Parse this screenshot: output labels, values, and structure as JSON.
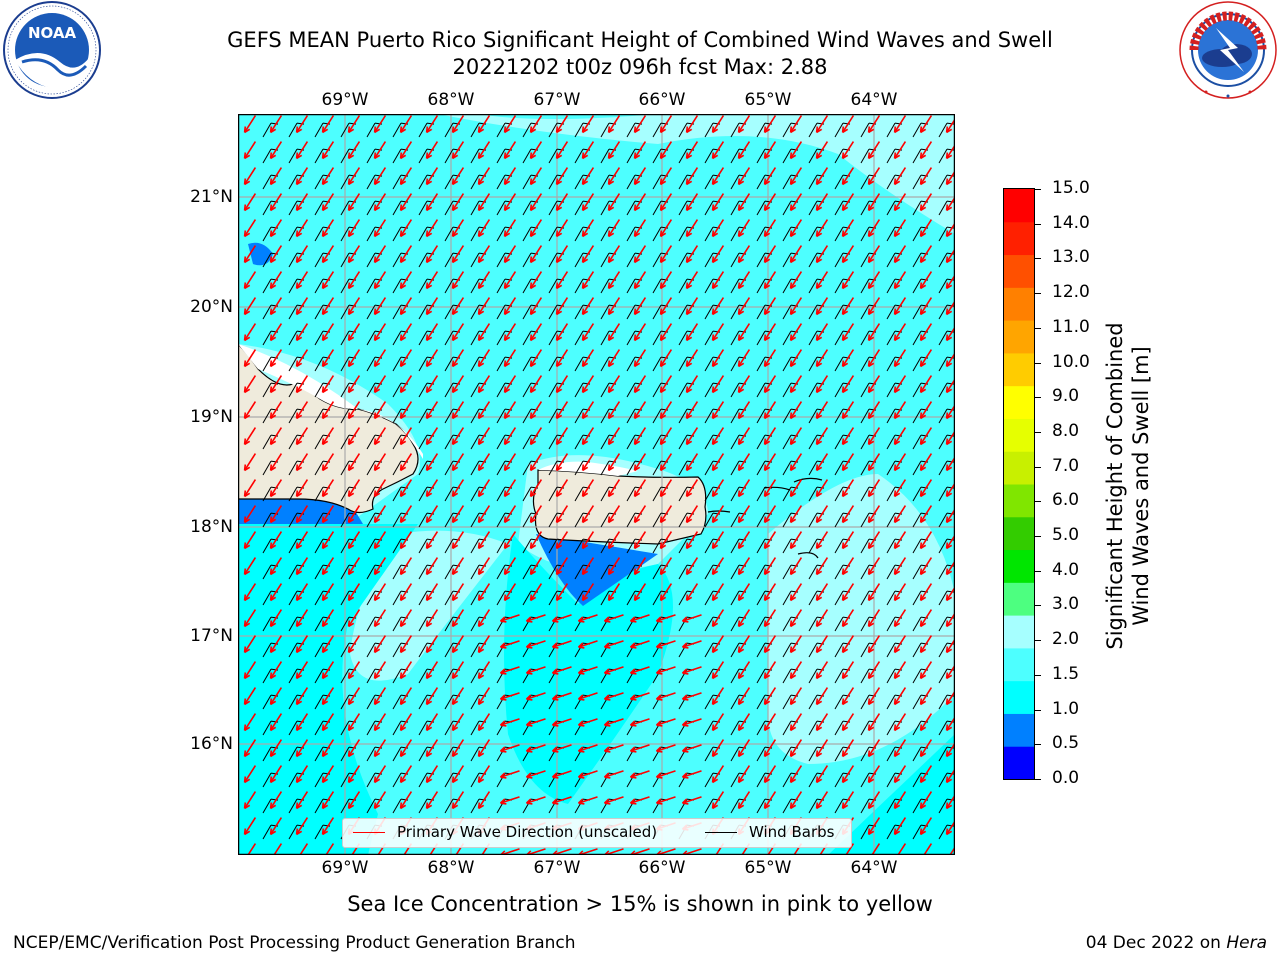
{
  "title": {
    "line1": "GEFS MEAN Puerto Rico Significant Height of Combined Wind Waves and Swell",
    "line2": "20221202 t00z 096h fcst   Max: 2.88"
  },
  "logos": {
    "noara": {
      "text": "NOAA",
      "ring_text": "NATIONAL OCEANIC AND ATMOSPHERIC ADMINISTRATION · U.S. DEPARTMENT OF COMMERCE"
    },
    "nws": {
      "ring_text": "NATIONAL WEATHER SERVICE"
    }
  },
  "map": {
    "lon_labels": [
      "69°W",
      "68°W",
      "67°W",
      "66°W",
      "65°W",
      "64°W"
    ],
    "lat_labels": [
      "21°N",
      "20°N",
      "19°N",
      "18°N",
      "17°N",
      "16°N"
    ],
    "extent": {
      "lon": [
        -70,
        -63.25
      ],
      "lat": [
        15.05,
        21.75
      ]
    },
    "features": [
      "Hispaniola (Dominican Republic east)",
      "Puerto Rico",
      "Virgin Islands"
    ],
    "colors": {
      "ocean_main": "#4dffff",
      "ocean_light": "#a6ffff",
      "ocean_mid": "#00ffff",
      "ocean_low": "#0080ff",
      "land": "#efebdc",
      "grid": "#aaaaaa",
      "wave_arrow": "#ff0000",
      "wind_barb": "#000000"
    }
  },
  "legend": {
    "wave_label": "Primary Wave Direction (unscaled)",
    "wind_label": "Wind Barbs"
  },
  "colorbar": {
    "levels": [
      "15.0",
      "14.0",
      "13.0",
      "12.0",
      "11.0",
      "10.0",
      "9.0",
      "8.0",
      "7.0",
      "6.0",
      "5.0",
      "4.0",
      "3.0",
      "2.0",
      "1.5",
      "1.0",
      "0.5",
      "0.0"
    ],
    "colors_bottom_up": [
      "#0000ff",
      "#0080ff",
      "#00ffff",
      "#4dffff",
      "#a6ffff",
      "#4dff80",
      "#00e600",
      "#33cc00",
      "#80e600",
      "#c8f000",
      "#e6ff00",
      "#ffff00",
      "#ffcc00",
      "#ffa500",
      "#ff8000",
      "#ff5000",
      "#ff2000",
      "#ff0000"
    ],
    "label_line1": "Significant Height of Combined",
    "label_line2": "Wind Waves and Swell [m]"
  },
  "caption": "Sea Ice Concentration > 15% is shown in pink to yellow",
  "footer": {
    "left": "NCEP/EMC/Verification Post Processing Product Generation Branch",
    "right_prefix": "04 Dec 2022 on ",
    "right_machine": "Hera"
  }
}
